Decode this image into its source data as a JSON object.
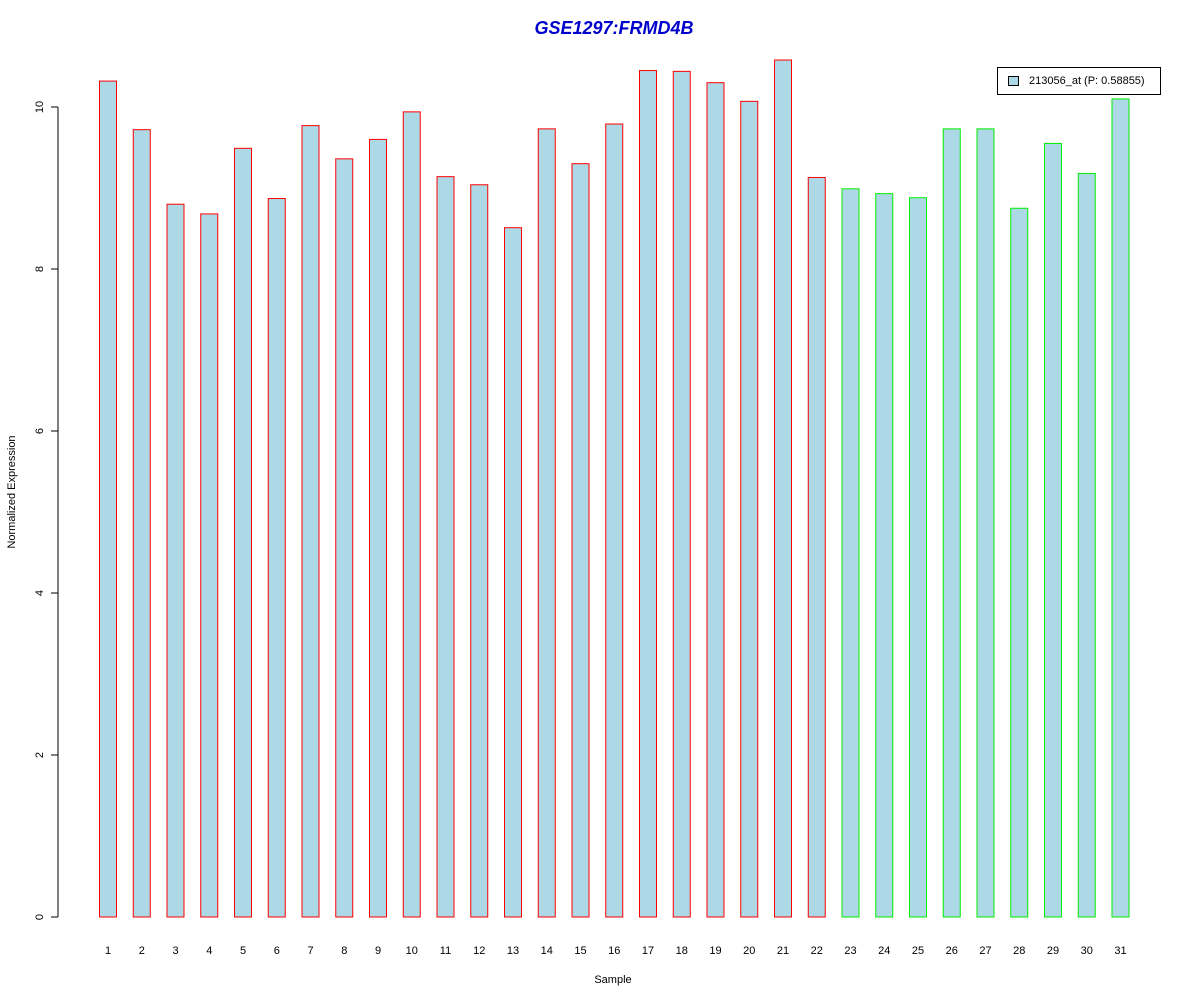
{
  "chart_data": {
    "type": "bar",
    "title": "GSE1297:FRMD4B",
    "xlabel": "Sample",
    "ylabel": "Normalized Expression",
    "ylim": [
      0,
      10.6
    ],
    "yticks": [
      0,
      2,
      4,
      6,
      8,
      10
    ],
    "grid": false,
    "legend_position": "top-right",
    "categories": [
      "1",
      "2",
      "3",
      "4",
      "5",
      "6",
      "7",
      "8",
      "9",
      "10",
      "11",
      "12",
      "13",
      "14",
      "15",
      "16",
      "17",
      "18",
      "19",
      "20",
      "21",
      "22",
      "23",
      "24",
      "25",
      "26",
      "27",
      "28",
      "29",
      "30",
      "31"
    ],
    "series": [
      {
        "name": "213056_at (P: 0.58855)",
        "fill_color": "#add8e6",
        "values": [
          10.32,
          9.72,
          8.8,
          8.68,
          9.49,
          8.87,
          9.77,
          9.36,
          9.6,
          9.94,
          9.14,
          9.04,
          8.51,
          9.73,
          9.3,
          9.79,
          10.45,
          10.44,
          10.3,
          10.07,
          10.58,
          9.13,
          8.99,
          8.93,
          8.88,
          9.73,
          9.73,
          8.75,
          9.55,
          9.18,
          10.1
        ],
        "border_colors": [
          "#ff0000",
          "#ff0000",
          "#ff0000",
          "#ff0000",
          "#ff0000",
          "#ff0000",
          "#ff0000",
          "#ff0000",
          "#ff0000",
          "#ff0000",
          "#ff0000",
          "#ff0000",
          "#ff0000",
          "#ff0000",
          "#ff0000",
          "#ff0000",
          "#ff0000",
          "#ff0000",
          "#ff0000",
          "#ff0000",
          "#ff0000",
          "#ff0000",
          "#00ee00",
          "#00ee00",
          "#00ee00",
          "#00ee00",
          "#00ee00",
          "#00ee00",
          "#00ee00",
          "#00ee00",
          "#00ee00"
        ]
      }
    ]
  },
  "legend": {
    "label": "213056_at (P: 0.58855)"
  }
}
